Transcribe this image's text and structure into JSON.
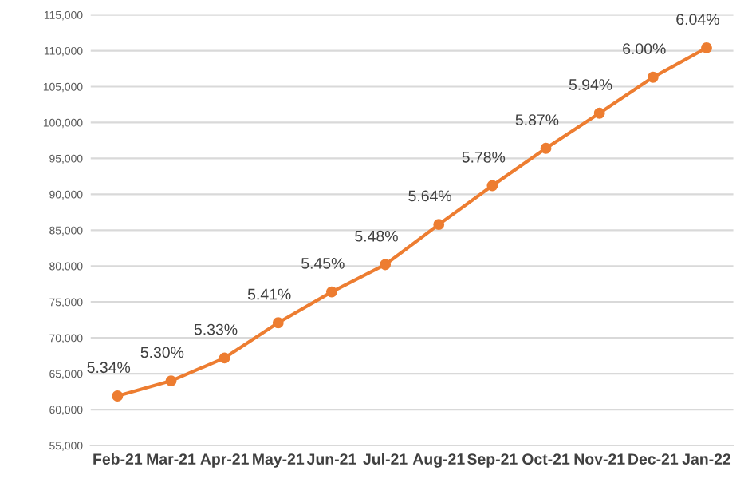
{
  "chart_data": {
    "type": "line",
    "categories": [
      "Feb-21",
      "Mar-21",
      "Apr-21",
      "May-21",
      "Jun-21",
      "Jul-21",
      "Aug-21",
      "Sep-21",
      "Oct-21",
      "Nov-21",
      "Dec-21",
      "Jan-22"
    ],
    "series": [
      {
        "color": "#ed7d31",
        "values": [
          61900,
          64000,
          67200,
          72100,
          76400,
          80200,
          85800,
          91200,
          96400,
          101300,
          106300,
          110400
        ]
      }
    ],
    "annotations": [
      {
        "text": "5.34%",
        "x": "Feb-21",
        "y": 61900
      },
      {
        "text": "5.30%",
        "x": "Mar-21",
        "y": 64000
      },
      {
        "text": "5.33%",
        "x": "Apr-21",
        "y": 67200
      },
      {
        "text": "5.41%",
        "x": "May-21",
        "y": 72100
      },
      {
        "text": "5.45%",
        "x": "Jun-21",
        "y": 76400
      },
      {
        "text": "5.48%",
        "x": "Jul-21",
        "y": 80200
      },
      {
        "text": "5.64%",
        "x": "Aug-21",
        "y": 85800
      },
      {
        "text": "5.78%",
        "x": "Sep-21",
        "y": 91200
      },
      {
        "text": "5.87%",
        "x": "Oct-21",
        "y": 96400
      },
      {
        "text": "5.94%",
        "x": "Nov-21",
        "y": 101300
      },
      {
        "text": "6.00%",
        "x": "Dec-21",
        "y": 106300
      },
      {
        "text": "6.04%",
        "x": "Jan-22",
        "y": 110400
      }
    ],
    "ylim": [
      55000,
      115000
    ],
    "yticks": [
      {
        "value": 55000,
        "label": "55,000"
      },
      {
        "value": 60000,
        "label": "60,000"
      },
      {
        "value": 65000,
        "label": "65,000"
      },
      {
        "value": 70000,
        "label": "70,000"
      },
      {
        "value": 75000,
        "label": "75,000"
      },
      {
        "value": 80000,
        "label": "80,000"
      },
      {
        "value": 85000,
        "label": "85,000"
      },
      {
        "value": 90000,
        "label": "90,000"
      },
      {
        "value": 95000,
        "label": "95,000"
      },
      {
        "value": 100000,
        "label": "100,000"
      },
      {
        "value": 105000,
        "label": "105,000"
      },
      {
        "value": 110000,
        "label": "110,000"
      },
      {
        "value": 115000,
        "label": "115,000"
      }
    ],
    "grid": "y",
    "marker": "circle",
    "line_style": "solid",
    "legend": false
  }
}
